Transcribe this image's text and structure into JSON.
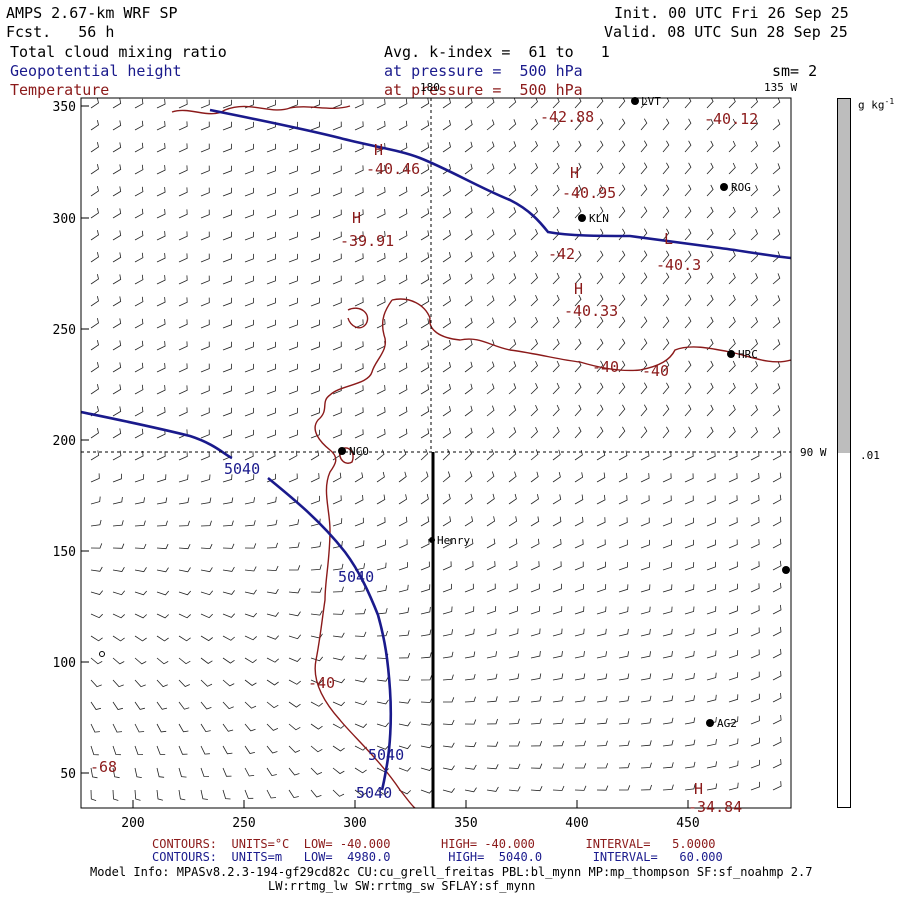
{
  "header": {
    "model": "AMPS 2.67-km WRF SP",
    "forecast": "Fcst.   56 h",
    "init": "Init. 00 UTC Fri 26 Sep 25",
    "valid": "Valid. 08 UTC Sun 28 Sep 25",
    "field_cloud": "Total cloud mixing ratio",
    "field_height": "Geopotential height",
    "field_temp": "Temperature",
    "avg_label": "Avg. k-index =  61 to   1",
    "pressure_height": "at pressure =  500 hPa",
    "pressure_temp": "at pressure =  500 hPa",
    "smoothing": "sm= 2"
  },
  "map": {
    "y_ticks": [
      "350",
      "300",
      "250",
      "200",
      "150",
      "100",
      "50"
    ],
    "x_ticks": [
      "200",
      "250",
      "300",
      "350",
      "400",
      "450"
    ],
    "meridian_180": "180",
    "meridian_135": "135 W",
    "meridian_90": "90 W",
    "stations": [
      "LVT",
      "ROG",
      "KLN",
      "HRC",
      "NCO",
      "Henry",
      "AG2"
    ],
    "height_labels": [
      "5040",
      "5040",
      "5040",
      "5040"
    ],
    "temp_labels": [
      "-42.88",
      "-40.12",
      "-40.46",
      "-40.95",
      "-39.91",
      "-42",
      "-40.3",
      "-40.33",
      "-40",
      "-40",
      "-40",
      "-68",
      "-34.84"
    ],
    "temp_extrema": [
      "H",
      "H",
      "H",
      "L",
      "H",
      "H"
    ]
  },
  "colorbar": {
    "units": "g kg",
    "units_sup": "-1",
    "level": ".01",
    "fill_fraction": 0.5
  },
  "footer": {
    "temp_contours": "CONTOURS:  UNITS=°C  LOW= -40.000       HIGH= -40.000       INTERVAL=   5.0000",
    "height_contours": "CONTOURS:  UNITS=m   LOW=  4980.0        HIGH=  5040.0       INTERVAL=   60.000",
    "model_info": "Model Info: MPASv8.2.3-194-gf29cd82c CU:cu_grell_freitas PBL:bl_mynn MP:mp_thompson SF:sf_noahmp 2.7",
    "model_info2": "LW:rrtmg_lw SW:rrtmg_sw SFLAY:sf_mynn"
  },
  "colors": {
    "height": "#1a1a8c",
    "temperature": "#8b1a1a",
    "cloud": "#bdbdbd"
  }
}
